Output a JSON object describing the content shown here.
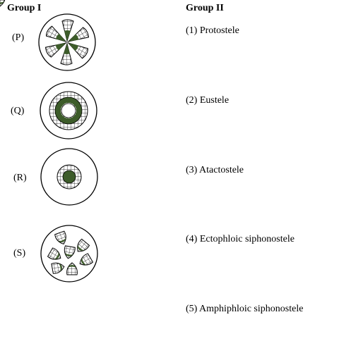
{
  "group1": {
    "title": "Group I",
    "items": [
      {
        "label": "(P)",
        "icon": "radial-sector-stele-diagram"
      },
      {
        "label": "(Q)",
        "icon": "ring-stele-diagram"
      },
      {
        "label": "(R)",
        "icon": "solid-central-stele-diagram"
      },
      {
        "label": "(S)",
        "icon": "scattered-bundles-stele-diagram"
      }
    ]
  },
  "group2": {
    "title": "Group II",
    "options": [
      "(1) Protostele",
      "(2) Eustele",
      "(3) Atactostele",
      "(4) Ectophloic siphonostele",
      "(5) Amphiphloic siphonostele"
    ]
  },
  "colors": {
    "xylem": "#3d5c2a",
    "outline": "#000000",
    "background": "#ffffff"
  }
}
